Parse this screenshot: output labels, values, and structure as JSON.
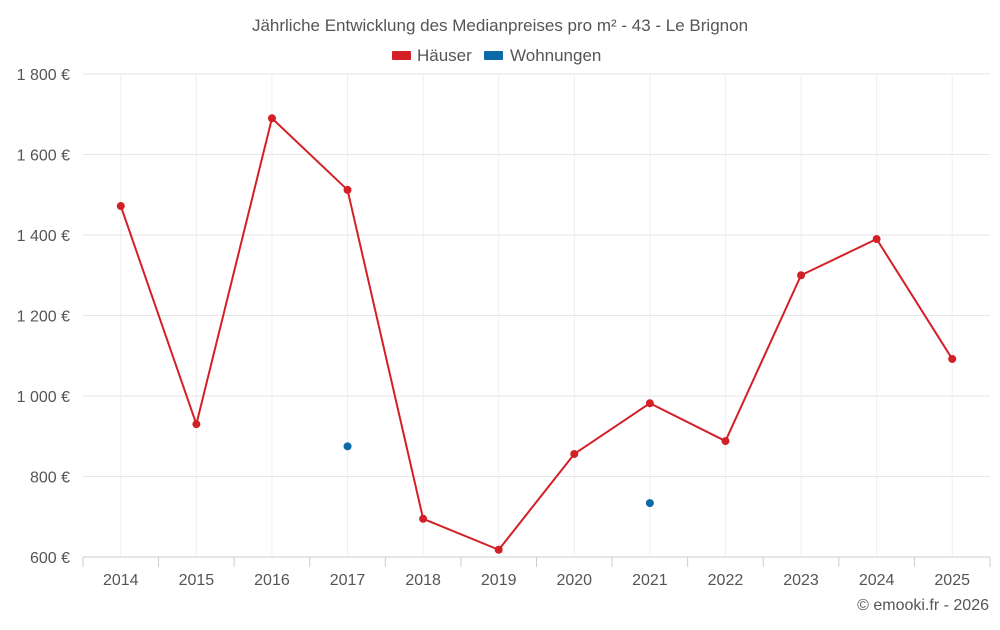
{
  "chart_data": {
    "type": "line",
    "title": "Jährliche Entwicklung des Medianpreises pro m² - 43 - Le Brignon",
    "categories": [
      "2014",
      "2015",
      "2016",
      "2017",
      "2018",
      "2019",
      "2020",
      "2021",
      "2022",
      "2023",
      "2024",
      "2025"
    ],
    "series": [
      {
        "name": "Häuser",
        "color": "#d32027",
        "values": [
          1472,
          930,
          1690,
          1512,
          695,
          618,
          856,
          982,
          888,
          1300,
          1390,
          1092
        ]
      },
      {
        "name": "Wohnungen",
        "color": "#0d6aa8",
        "values": [
          null,
          null,
          null,
          875,
          null,
          null,
          null,
          734,
          null,
          null,
          null,
          null
        ]
      }
    ],
    "ylim": [
      600,
      1800
    ],
    "yticks": [
      600,
      800,
      1000,
      1200,
      1400,
      1600,
      1800
    ],
    "ytick_labels": [
      "600 €",
      "800 €",
      "1 000 €",
      "1 200 €",
      "1 400 €",
      "1 600 €",
      "1 800 €"
    ],
    "xlabel": "",
    "ylabel": "",
    "legend": "top-center",
    "grid": true
  },
  "credit": "© emooki.fr - 2026"
}
